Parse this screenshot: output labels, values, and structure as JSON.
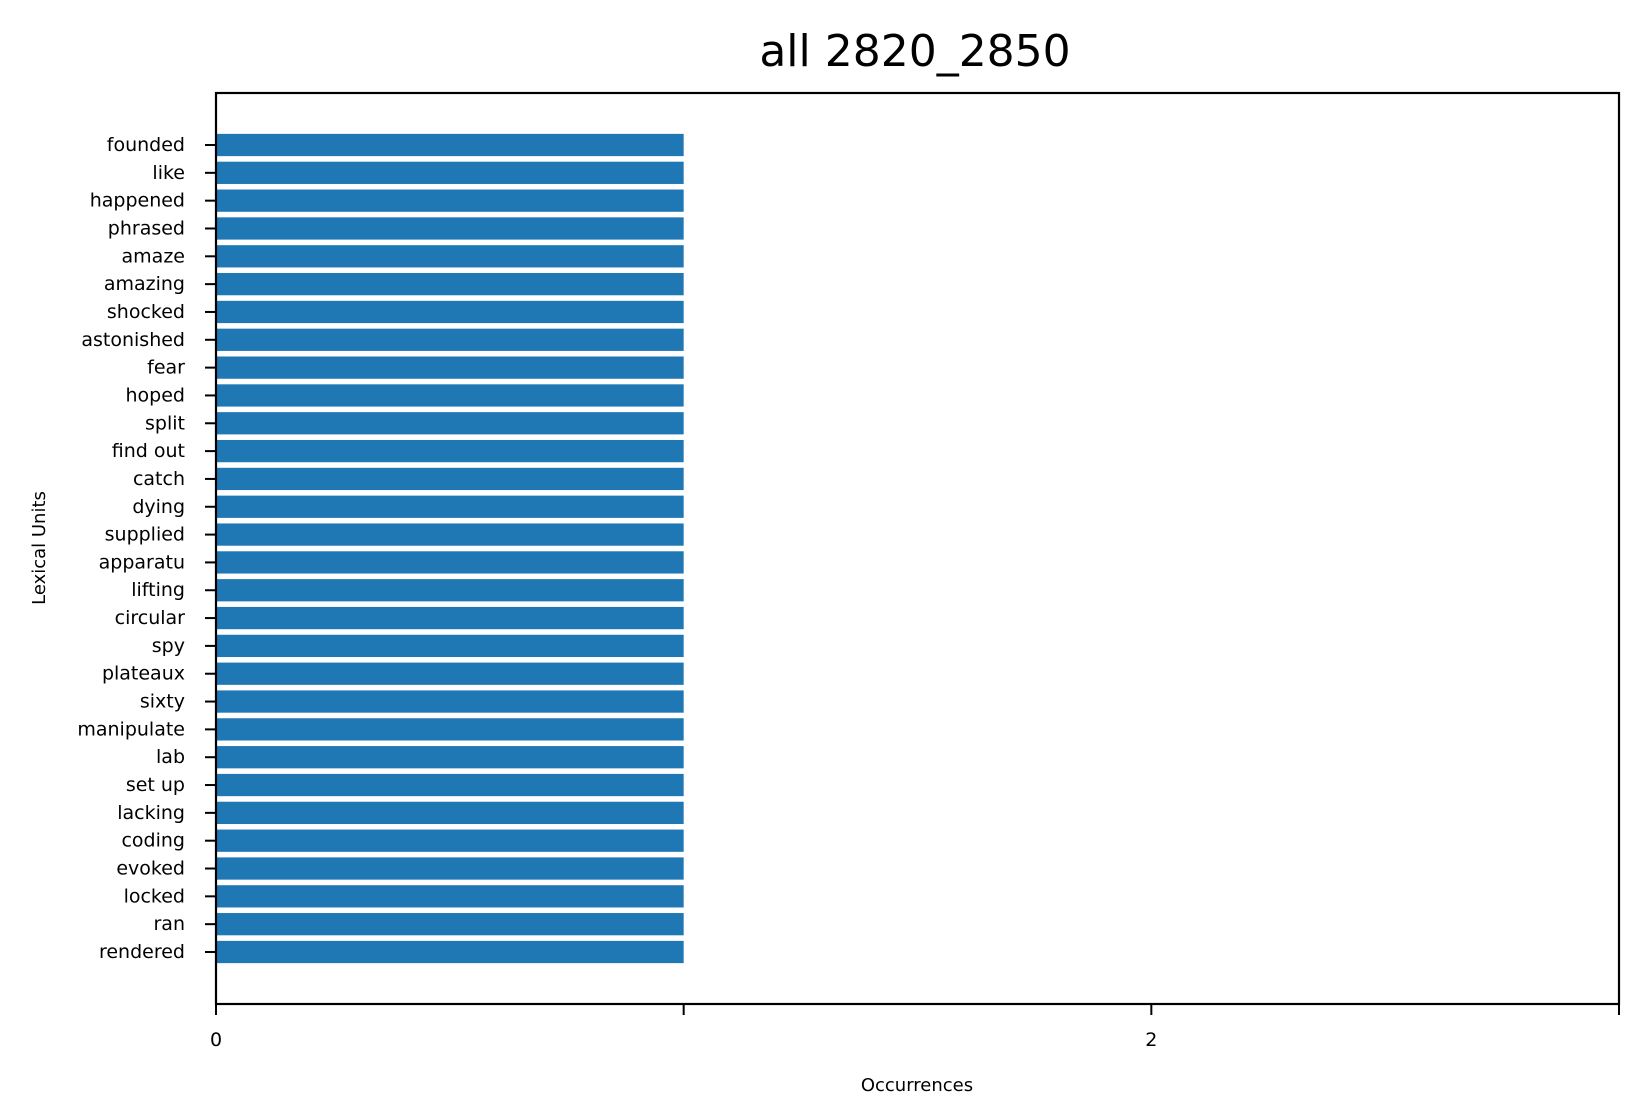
{
  "chart_data": {
    "type": "bar",
    "orientation": "horizontal",
    "title": "all 2820_2850",
    "xlabel": "Occurrences",
    "ylabel": "Lexical Units",
    "categories": [
      "founded",
      "like",
      "happened",
      "phrased",
      "amaze",
      "amazing",
      "shocked",
      "astonished",
      "fear",
      "hoped",
      "split",
      "find out",
      "catch",
      "dying",
      "supplied",
      "apparatu",
      "lifting",
      "circular",
      "spy",
      "plateaux",
      "sixty",
      "manipulate",
      "lab",
      "set up",
      "lacking",
      "coding",
      "evoked",
      "locked",
      "ran",
      "rendered"
    ],
    "values": [
      1,
      1,
      1,
      1,
      1,
      1,
      1,
      1,
      1,
      1,
      1,
      1,
      1,
      1,
      1,
      1,
      1,
      1,
      1,
      1,
      1,
      1,
      1,
      1,
      1,
      1,
      1,
      1,
      1,
      1
    ],
    "xlim": [
      0,
      3
    ],
    "x_ticks": [
      0,
      1,
      2,
      3
    ],
    "x_tick_labels": [
      "0",
      "",
      "2",
      ""
    ],
    "grid": false,
    "color": "#1f77b4"
  }
}
